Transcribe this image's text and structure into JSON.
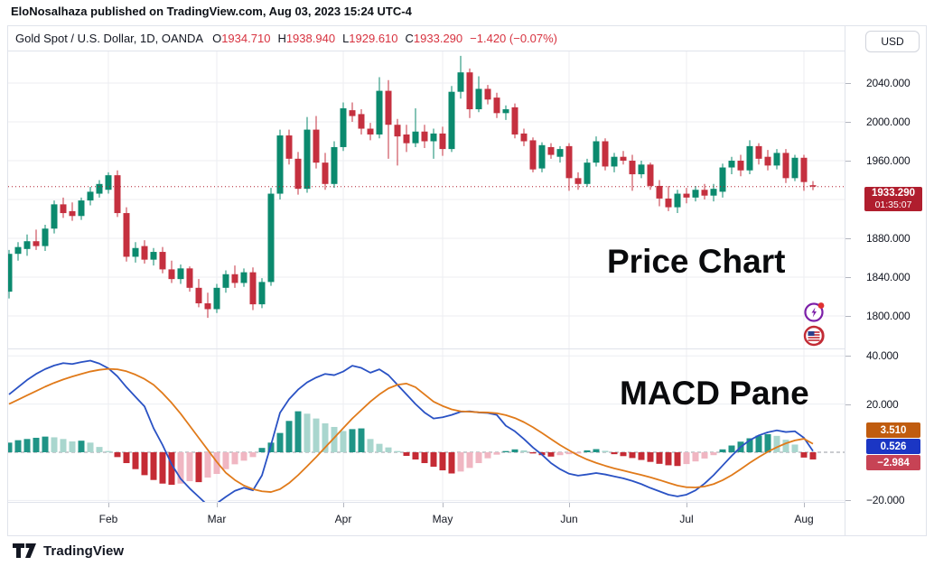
{
  "publisher_bar": {
    "text": "EloNosalhaza published on TradingView.com, Aug 03, 2023 15:24 UTC-4"
  },
  "symbol_bar": {
    "title": "Gold Spot / U.S. Dollar, 1D, OANDA",
    "ohlc": {
      "o_label": "O",
      "o": "1934.710",
      "h_label": "H",
      "h": "1938.940",
      "l_label": "L",
      "l": "1929.610",
      "c_label": "C",
      "c": "1933.290"
    },
    "change": "−1.420 (−0.07%)",
    "currency_button": "USD"
  },
  "annotations": {
    "price_pane": "Price Chart",
    "macd_pane": "MACD Pane"
  },
  "price_axis": {
    "labels": [
      "2040.000",
      "2000.000",
      "1960.000",
      "1880.000",
      "1840.000",
      "1800.000"
    ],
    "grid_values": [
      2040,
      2000,
      1960,
      1920,
      1880,
      1840,
      1800
    ],
    "last_price_label": "1933.290",
    "countdown": "01:35:07",
    "last_price_value": 1933.29
  },
  "macd_axis": {
    "labels": [
      "40.000",
      "20.000",
      "−20.000"
    ],
    "grid_values": [
      40,
      20,
      -20
    ],
    "badges": [
      {
        "name": "signal",
        "value": "3.510",
        "color": "#C05C0F"
      },
      {
        "name": "macd",
        "value": "0.526",
        "color": "#1B36C4"
      },
      {
        "name": "histogram",
        "value": "−2.984",
        "color": "#C74355"
      }
    ]
  },
  "time_axis": {
    "months": [
      {
        "label": "Feb",
        "bar": 11
      },
      {
        "label": "Mar",
        "bar": 23
      },
      {
        "label": "Apr",
        "bar": 37
      },
      {
        "label": "May",
        "bar": 48
      },
      {
        "label": "Jun",
        "bar": 62
      },
      {
        "label": "Jul",
        "bar": 75
      },
      {
        "label": "Aug",
        "bar": 88
      }
    ]
  },
  "icons": {
    "event_icon_1": "economic-event-lightning-icon",
    "event_icon_2": "us-flag-event-icon",
    "logo": "tradingview-logo"
  },
  "footer": {
    "brand": "TradingView"
  },
  "colors": {
    "up": "#0B8A6E",
    "down": "#C5303F",
    "macd_line": "#2A52C4",
    "signal_line": "#E07A1A",
    "hist_grow_above": "#1F9486",
    "hist_fall_above": "#A9D6CE",
    "hist_grow_below": "#F0B6C2",
    "hist_fall_below": "#C52B35",
    "last_price_badge": "#B01E2E",
    "grid": "#ECEEF2",
    "zero_line": "#9598A1",
    "value_red": "#D7323F"
  },
  "chart_data": {
    "type": "candlestick",
    "title": "Gold Spot / U.S. Dollar, 1D, OANDA",
    "ylabel": "USD",
    "price_ylim": [
      1790,
      2075
    ],
    "macd_ylim": [
      -23,
      43
    ],
    "legend_position": "none",
    "grid": true,
    "candles_ohlc": [
      [
        1825,
        1868,
        1818,
        1864
      ],
      [
        1864,
        1876,
        1857,
        1871
      ],
      [
        1869,
        1884,
        1862,
        1877
      ],
      [
        1877,
        1889,
        1868,
        1872
      ],
      [
        1872,
        1894,
        1867,
        1890
      ],
      [
        1890,
        1919,
        1885,
        1915
      ],
      [
        1915,
        1922,
        1901,
        1906
      ],
      [
        1908,
        1917,
        1898,
        1903
      ],
      [
        1903,
        1922,
        1899,
        1919
      ],
      [
        1919,
        1933,
        1914,
        1928
      ],
      [
        1926,
        1940,
        1922,
        1936
      ],
      [
        1930,
        1948,
        1926,
        1945
      ],
      [
        1945,
        1950,
        1902,
        1906
      ],
      [
        1906,
        1912,
        1856,
        1861
      ],
      [
        1861,
        1876,
        1855,
        1870
      ],
      [
        1872,
        1878,
        1854,
        1858
      ],
      [
        1858,
        1870,
        1852,
        1866
      ],
      [
        1866,
        1871,
        1844,
        1848
      ],
      [
        1848,
        1857,
        1834,
        1838
      ],
      [
        1838,
        1853,
        1833,
        1849
      ],
      [
        1849,
        1851,
        1825,
        1829
      ],
      [
        1829,
        1838,
        1809,
        1813
      ],
      [
        1813,
        1824,
        1798,
        1807
      ],
      [
        1807,
        1833,
        1803,
        1829
      ],
      [
        1829,
        1847,
        1824,
        1843
      ],
      [
        1843,
        1852,
        1829,
        1834
      ],
      [
        1834,
        1849,
        1830,
        1845
      ],
      [
        1845,
        1850,
        1806,
        1812
      ],
      [
        1812,
        1839,
        1808,
        1835
      ],
      [
        1835,
        1932,
        1831,
        1926
      ],
      [
        1926,
        1992,
        1920,
        1986
      ],
      [
        1986,
        1992,
        1956,
        1962
      ],
      [
        1962,
        1969,
        1925,
        1931
      ],
      [
        1931,
        2005,
        1927,
        1992
      ],
      [
        1992,
        2006,
        1952,
        1958
      ],
      [
        1958,
        1968,
        1930,
        1936
      ],
      [
        1936,
        1980,
        1932,
        1974
      ],
      [
        1974,
        2020,
        1970,
        2014
      ],
      [
        2012,
        2020,
        2000,
        2006
      ],
      [
        2008,
        2013,
        1987,
        1993
      ],
      [
        1993,
        1999,
        1981,
        1987
      ],
      [
        1987,
        2046,
        1983,
        2032
      ],
      [
        2032,
        2043,
        1962,
        1997
      ],
      [
        1997,
        2003,
        1955,
        1985
      ],
      [
        1987,
        1997,
        1969,
        1978
      ],
      [
        1978,
        2014,
        1974,
        1990
      ],
      [
        1990,
        1997,
        1973,
        1980
      ],
      [
        1980,
        1993,
        1962,
        1988
      ],
      [
        1988,
        1995,
        1965,
        1972
      ],
      [
        1972,
        2037,
        1969,
        2031
      ],
      [
        2031,
        2068,
        2024,
        2051
      ],
      [
        2051,
        2055,
        2004,
        2013
      ],
      [
        2013,
        2047,
        2010,
        2034
      ],
      [
        2034,
        2038,
        2018,
        2023
      ],
      [
        2025,
        2030,
        2004,
        2009
      ],
      [
        2009,
        2017,
        2002,
        2013
      ],
      [
        2015,
        2019,
        1983,
        1987
      ],
      [
        1988,
        1993,
        1975,
        1980
      ],
      [
        1981,
        1984,
        1948,
        1951
      ],
      [
        1952,
        1979,
        1948,
        1976
      ],
      [
        1974,
        1978,
        1962,
        1966
      ],
      [
        1964,
        1975,
        1958,
        1972
      ],
      [
        1975,
        1978,
        1929,
        1942
      ],
      [
        1942,
        1948,
        1930,
        1936
      ],
      [
        1936,
        1962,
        1933,
        1958
      ],
      [
        1958,
        1985,
        1954,
        1980
      ],
      [
        1980,
        1983,
        1950,
        1954
      ],
      [
        1954,
        1968,
        1948,
        1964
      ],
      [
        1964,
        1970,
        1956,
        1960
      ],
      [
        1960,
        1966,
        1929,
        1946
      ],
      [
        1946,
        1960,
        1942,
        1956
      ],
      [
        1956,
        1958,
        1930,
        1934
      ],
      [
        1934,
        1940,
        1913,
        1921
      ],
      [
        1921,
        1934,
        1908,
        1912
      ],
      [
        1912,
        1930,
        1906,
        1926
      ],
      [
        1926,
        1932,
        1916,
        1922
      ],
      [
        1922,
        1934,
        1918,
        1930
      ],
      [
        1930,
        1936,
        1920,
        1924
      ],
      [
        1924,
        1936,
        1918,
        1931
      ],
      [
        1928,
        1957,
        1922,
        1953
      ],
      [
        1953,
        1964,
        1946,
        1960
      ],
      [
        1960,
        1966,
        1944,
        1950
      ],
      [
        1950,
        1981,
        1946,
        1975
      ],
      [
        1975,
        1978,
        1956,
        1962
      ],
      [
        1964,
        1971,
        1950,
        1955
      ],
      [
        1955,
        1972,
        1951,
        1968
      ],
      [
        1968,
        1972,
        1937,
        1942
      ],
      [
        1942,
        1966,
        1939,
        1963
      ],
      [
        1963,
        1966,
        1929,
        1938
      ],
      [
        1934.71,
        1938.94,
        1929.61,
        1933.29
      ]
    ],
    "macd_series": {
      "macd": [
        24,
        27,
        30,
        32.5,
        34.5,
        36,
        37,
        36.6,
        37.4,
        38,
        36.8,
        34.8,
        31.5,
        27,
        23,
        19,
        10,
        3,
        -5,
        -11,
        -15,
        -18.5,
        -22,
        -21.2,
        -18.5,
        -16,
        -14.7,
        -15.8,
        -9.6,
        3,
        16.4,
        22,
        26,
        29,
        31,
        32.5,
        32,
        33.5,
        35.9,
        35,
        33,
        34.4,
        32,
        28,
        24,
        20,
        16.5,
        14,
        14.5,
        15.5,
        16.8,
        17,
        16.5,
        16.3,
        15.5,
        11,
        8.7,
        5.5,
        2,
        -1,
        -4.5,
        -7,
        -8.9,
        -9.7,
        -9.2,
        -8.6,
        -9.2,
        -10,
        -10.8,
        -11.9,
        -13.2,
        -14.8,
        -16.2,
        -17.6,
        -18.3,
        -17.6,
        -15.8,
        -13,
        -9.5,
        -5.5,
        -1.5,
        2.2,
        5,
        7,
        8.3,
        9.1,
        8.4,
        8.7,
        6,
        0.526
      ],
      "signal": [
        20,
        21.8,
        23.6,
        25.4,
        27.2,
        28.8,
        30.2,
        31.4,
        32.5,
        33.5,
        34.2,
        34.6,
        34.4,
        33.6,
        32.2,
        30.4,
        28,
        24.5,
        20.5,
        16,
        11,
        6,
        1,
        -4,
        -8.5,
        -11.5,
        -13.8,
        -15.3,
        -16.2,
        -16.5,
        -15.3,
        -12.8,
        -9.5,
        -5.8,
        -2,
        2,
        6,
        10,
        14,
        17.5,
        21,
        24,
        26.5,
        28,
        28.5,
        27,
        24,
        21,
        19.2,
        17.8,
        17,
        16.8,
        16.6,
        16.5,
        16.2,
        15.4,
        14.2,
        12.5,
        10.4,
        8,
        5.5,
        3,
        0.8,
        -1.3,
        -3,
        -4.4,
        -5.6,
        -6.7,
        -7.6,
        -8.5,
        -9.4,
        -10.4,
        -11.5,
        -12.7,
        -13.8,
        -14.5,
        -14.6,
        -14.2,
        -13.2,
        -11.6,
        -9.5,
        -7,
        -4.4,
        -2,
        0.2,
        2.1,
        3.7,
        4.9,
        5.6,
        3.51
      ],
      "histogram": [
        4,
        5,
        5.5,
        6,
        6.5,
        6.2,
        5.5,
        4.5,
        4.8,
        4,
        2.2,
        0.5,
        -2,
        -4.5,
        -7,
        -9.5,
        -11.5,
        -13,
        -13.5,
        -13,
        -12,
        -12.4,
        -10.5,
        -9,
        -7,
        -5,
        -3.5,
        -2,
        1.8,
        4,
        8,
        13,
        17,
        16,
        14,
        12,
        10.5,
        8.8,
        9.6,
        9.9,
        5.5,
        3.5,
        2,
        0.5,
        -1.5,
        -3,
        -4.5,
        -6,
        -7.5,
        -8.8,
        -8,
        -6.5,
        -4.5,
        -2.5,
        -1,
        0.5,
        1.2,
        0.8,
        -0.5,
        -1.2,
        -1.8,
        -1.2,
        -0.8,
        -0.5,
        0.8,
        1.3,
        0.6,
        -0.8,
        -1.6,
        -2.4,
        -3.2,
        -4,
        -4.8,
        -5.4,
        -5.7,
        -4.9,
        -3.8,
        -2.6,
        -1.2,
        1.2,
        2.8,
        4.4,
        5.8,
        6.9,
        7.5,
        6.8,
        5.2,
        3.2,
        -2.2,
        -2.984
      ],
      "last_values": {
        "macd": 0.526,
        "signal": 3.51,
        "histogram": -2.984
      }
    }
  }
}
